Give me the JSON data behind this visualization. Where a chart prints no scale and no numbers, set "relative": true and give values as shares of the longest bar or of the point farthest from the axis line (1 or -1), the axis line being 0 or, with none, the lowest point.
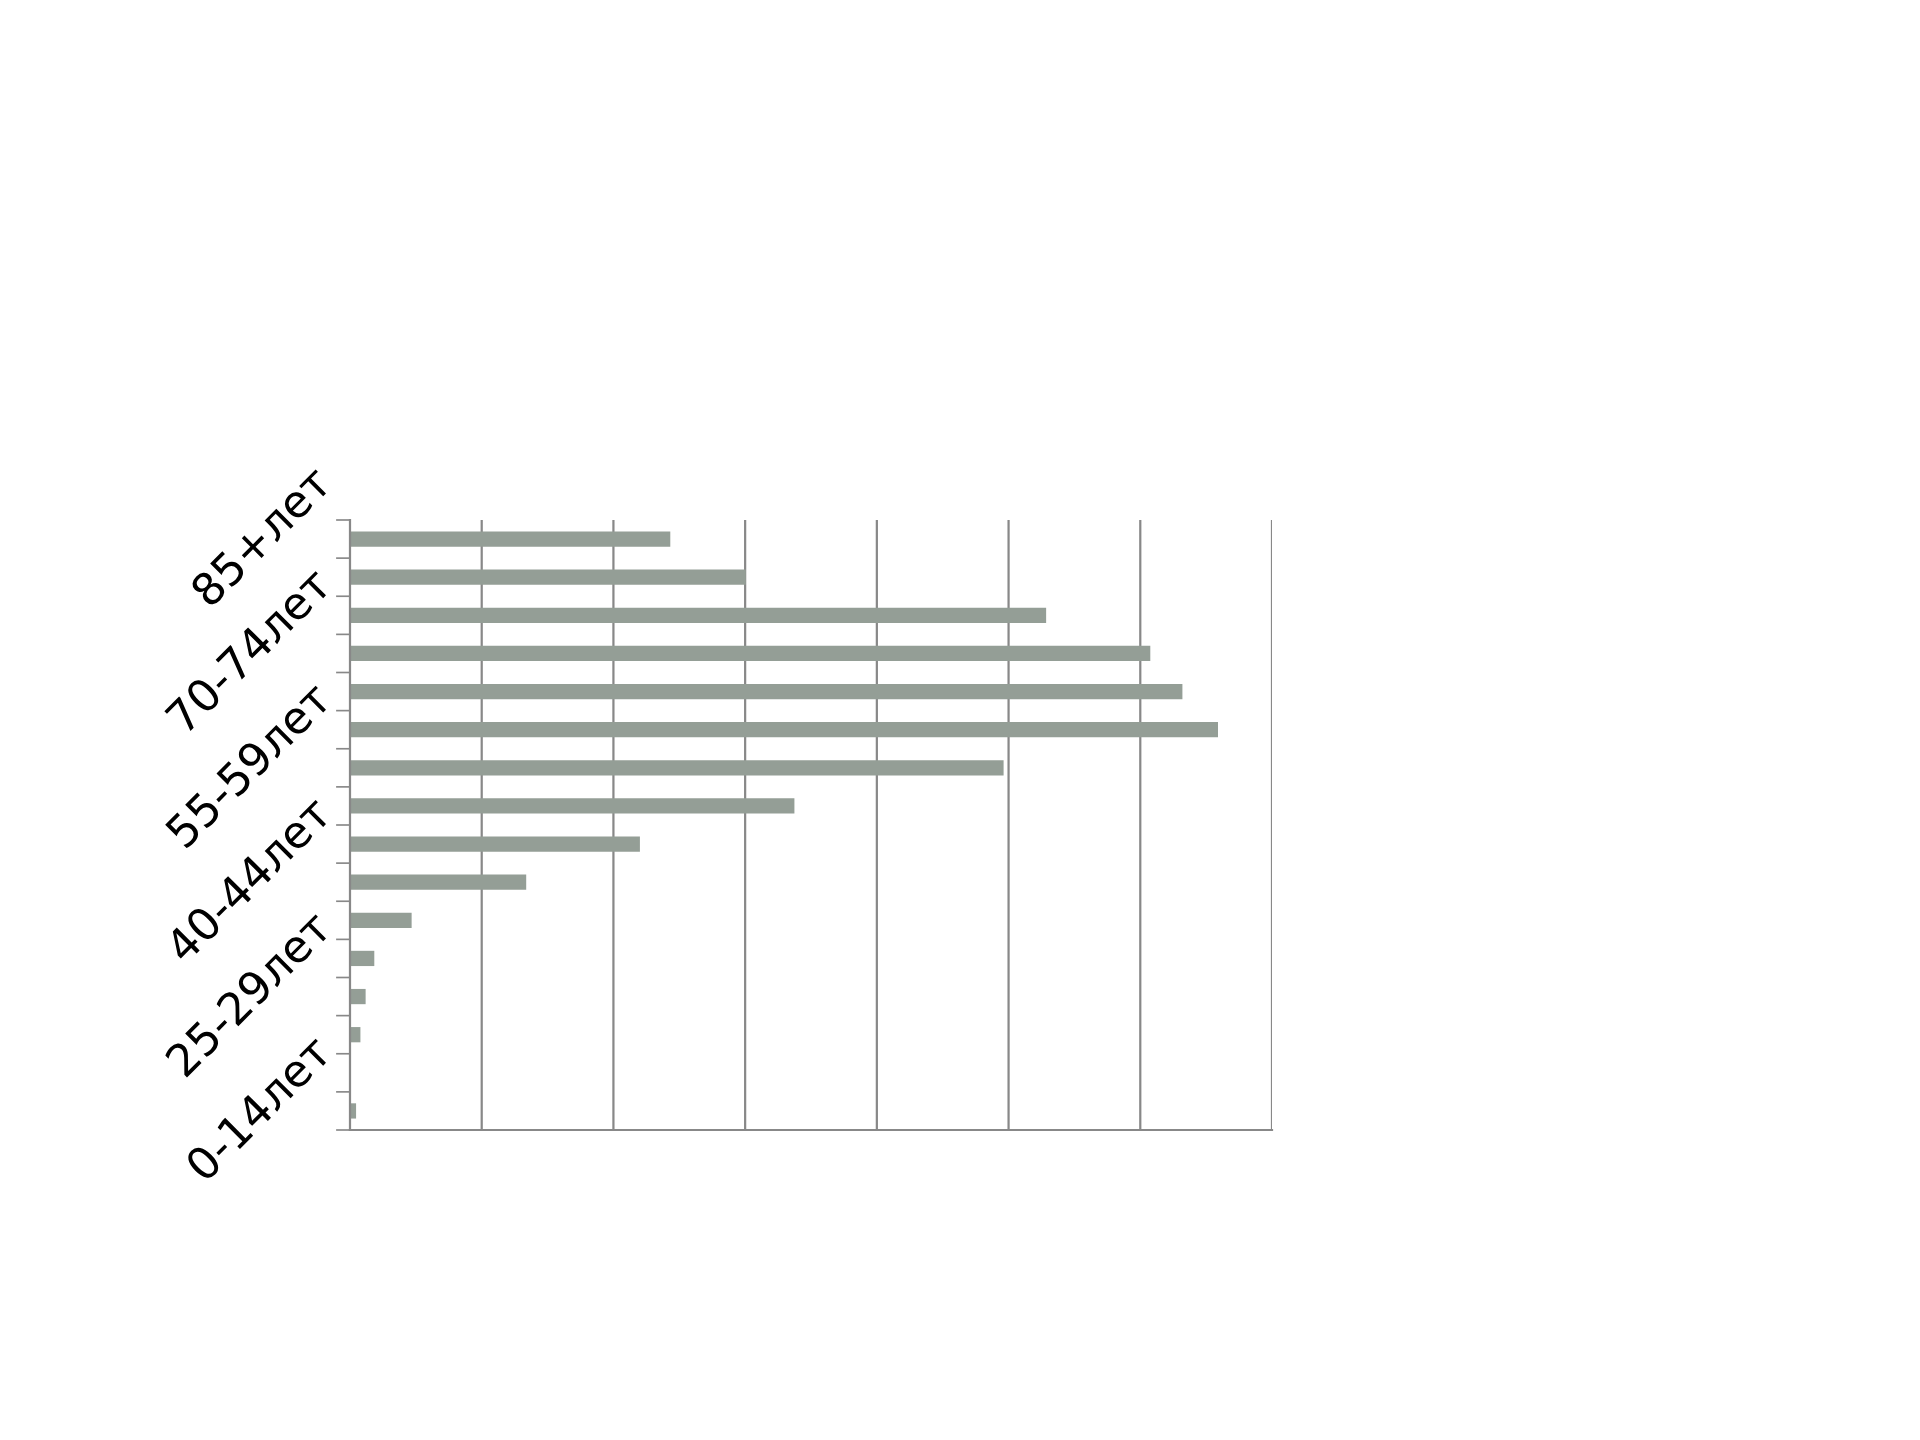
{
  "chart_data": {
    "type": "bar",
    "orientation": "horizontal",
    "relative": true,
    "grid": "x",
    "legend": false,
    "categories": [
      "85+лет",
      null,
      null,
      "70-74лет",
      null,
      null,
      "55-59лет",
      null,
      null,
      "40-44лет",
      null,
      null,
      "25-29лет",
      null,
      null,
      "0-14лет"
    ],
    "values": [
      0.369,
      0.456,
      0.802,
      0.922,
      0.959,
      1,
      0.753,
      0.512,
      0.334,
      0.203,
      0.071,
      0.028,
      0.018,
      0.012,
      0,
      0.007
    ],
    "color": "#949e96"
  }
}
